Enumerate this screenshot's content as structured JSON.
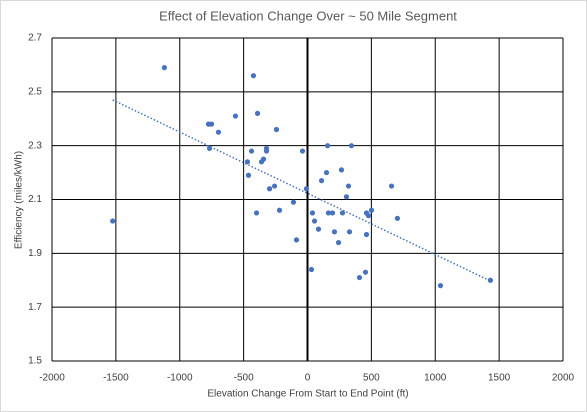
{
  "chart_data": {
    "type": "scatter",
    "title": "Effect of Elevation Change Over ~ 50 Mile Segment",
    "x_label": "Elevation Change From Start to End Point (ft)",
    "y_label": "Efficiency (miles/kWh)",
    "series": [
      {
        "color": "#4472c4",
        "x": [
          -1525,
          -1120,
          -775,
          -751,
          -767,
          -697,
          -564,
          -423,
          -391,
          -470,
          -438,
          -462,
          -399,
          -360,
          -344,
          -321,
          -321,
          -297,
          -258,
          -243,
          -219,
          -110,
          -86,
          -39,
          -8,
          31,
          39,
          55,
          86,
          110,
          149,
          157,
          164,
          196,
          211,
          243,
          266,
          274,
          305,
          321,
          329,
          344,
          407,
          454,
          462,
          462,
          477,
          501,
          658,
          704,
          1041,
          1432
        ],
        "values": [
          2.02,
          2.59,
          2.38,
          2.38,
          2.29,
          2.35,
          2.41,
          2.56,
          2.42,
          2.24,
          2.28,
          2.19,
          2.05,
          2.24,
          2.25,
          2.28,
          2.29,
          2.14,
          2.15,
          2.36,
          2.06,
          2.09,
          1.95,
          2.28,
          2.14,
          1.84,
          2.05,
          2.02,
          1.99,
          2.17,
          2.2,
          2.3,
          2.05,
          2.05,
          1.98,
          1.94,
          2.21,
          2.05,
          2.11,
          2.15,
          1.98,
          2.3,
          1.81,
          1.83,
          2.05,
          1.97,
          2.04,
          2.06,
          2.15,
          2.03,
          1.78,
          1.8
        ]
      }
    ],
    "trendline": {
      "color": "#4472c4",
      "x": [
        -1525,
        1420
      ],
      "values": [
        2.47,
        1.8
      ]
    },
    "xlim": [
      -2000,
      2000
    ],
    "xticks": [
      -2000,
      -1500,
      -1000,
      -500,
      0,
      500,
      1000,
      1500,
      2000
    ],
    "ylim": [
      1.5,
      2.7
    ],
    "yticks": [
      1.5,
      1.7,
      1.9,
      2.1,
      2.3,
      2.5,
      2.7
    ],
    "grid": true
  }
}
